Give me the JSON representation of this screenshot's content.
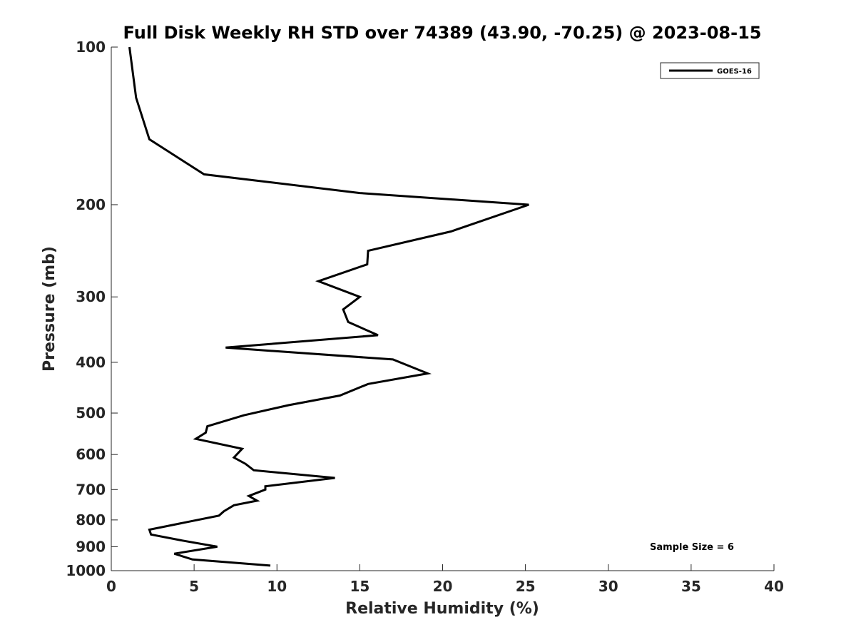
{
  "chart_data": {
    "type": "line",
    "title": "Full Disk Weekly RH STD over 74389 (43.90, -70.25) @ 2023-08-15",
    "xlabel": "Relative Humidity (%)",
    "ylabel": "Pressure (mb)",
    "xlim": [
      0,
      40
    ],
    "ylim": [
      100,
      1000
    ],
    "y_scale": "log",
    "y_reversed": true,
    "x_ticks": [
      0,
      5,
      10,
      15,
      20,
      25,
      30,
      35,
      40
    ],
    "y_ticks": [
      100,
      200,
      300,
      400,
      500,
      600,
      700,
      800,
      900,
      1000
    ],
    "grid": false,
    "legend_position": "top-right",
    "annotation": "Sample Size = 6",
    "series": [
      {
        "name": "GOES-16",
        "color": "#000000",
        "points": [
          [
            1.1,
            100
          ],
          [
            1.5,
            125
          ],
          [
            2.3,
            150
          ],
          [
            5.6,
            175
          ],
          [
            15.0,
            190
          ],
          [
            25.2,
            200
          ],
          [
            20.5,
            225
          ],
          [
            15.5,
            245
          ],
          [
            15.45,
            260
          ],
          [
            12.5,
            280
          ],
          [
            15.0,
            300
          ],
          [
            14.0,
            317
          ],
          [
            14.3,
            335
          ],
          [
            16.1,
            355
          ],
          [
            6.9,
            375
          ],
          [
            17.0,
            395
          ],
          [
            19.1,
            420
          ],
          [
            15.5,
            440
          ],
          [
            13.8,
            463
          ],
          [
            10.7,
            483
          ],
          [
            8.0,
            505
          ],
          [
            5.8,
            530
          ],
          [
            5.7,
            545
          ],
          [
            5.1,
            560
          ],
          [
            7.9,
            585
          ],
          [
            7.4,
            608
          ],
          [
            8.1,
            625
          ],
          [
            8.6,
            643
          ],
          [
            13.5,
            665
          ],
          [
            9.3,
            690
          ],
          [
            9.3,
            700
          ],
          [
            8.3,
            720
          ],
          [
            8.8,
            735
          ],
          [
            7.4,
            750
          ],
          [
            6.8,
            770
          ],
          [
            6.5,
            785
          ],
          [
            2.3,
            835
          ],
          [
            2.4,
            853
          ],
          [
            4.2,
            875
          ],
          [
            6.4,
            900
          ],
          [
            3.8,
            928
          ],
          [
            4.9,
            952
          ],
          [
            9.6,
            978
          ]
        ]
      }
    ]
  }
}
